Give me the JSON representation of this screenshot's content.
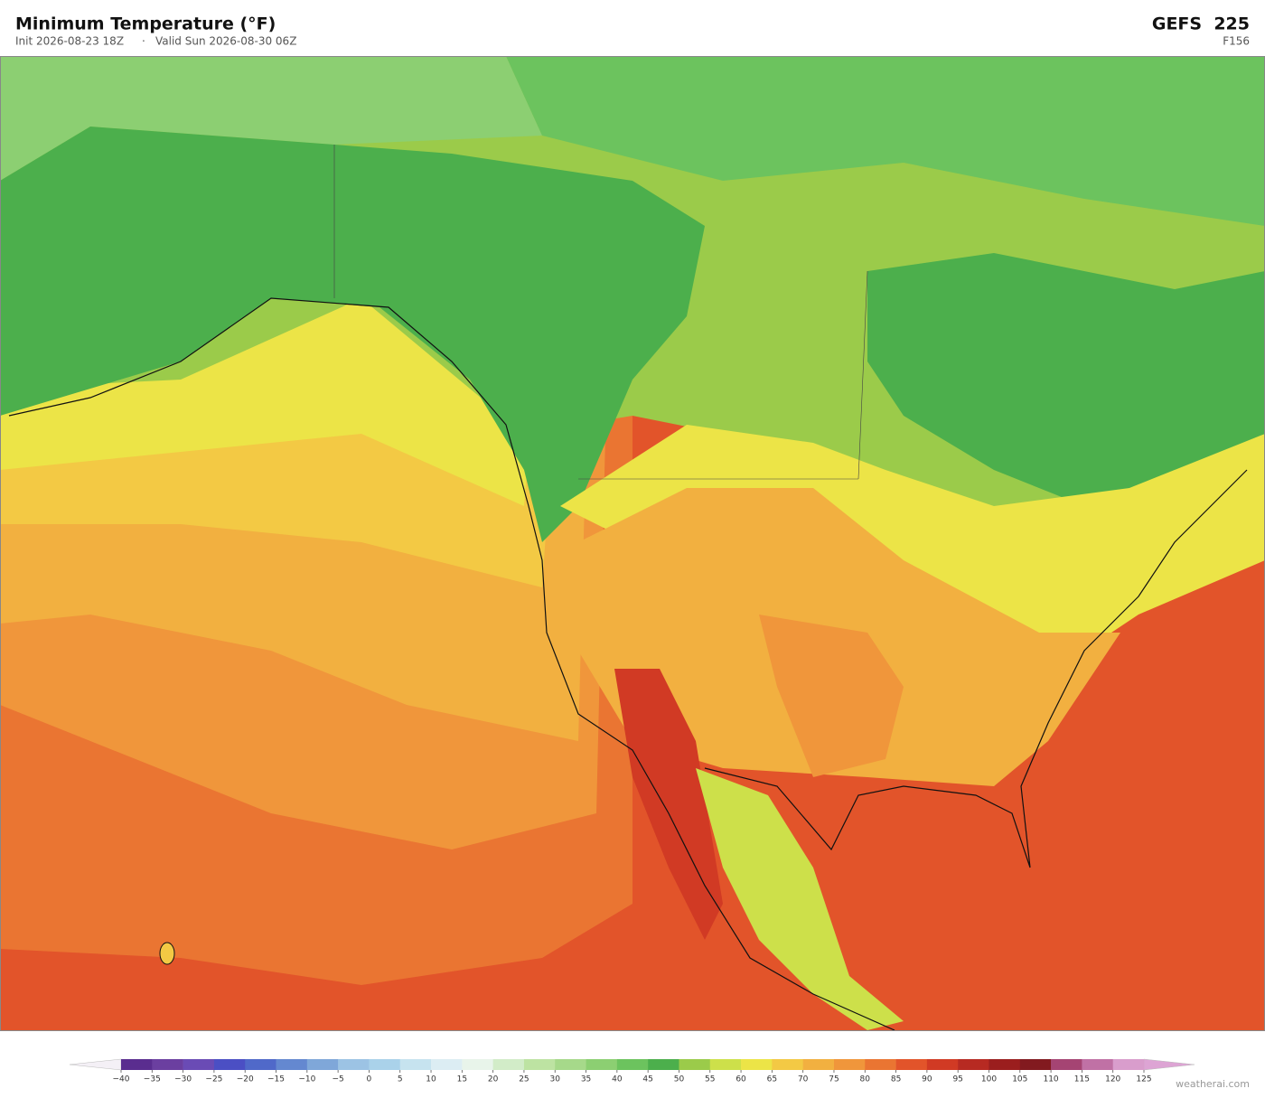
{
  "header": {
    "title": "Minimum Temperature  (°F)",
    "init": "Init 2026-08-23 18Z",
    "separator": "·",
    "valid": "Valid Sun 2026-08-30 06Z",
    "model": "GEFS  225",
    "forecast_hour": "F156"
  },
  "colorbar": {
    "ticks": [
      {
        "value": -40,
        "label": "−40"
      },
      {
        "value": -35,
        "label": "−35"
      },
      {
        "value": -30,
        "label": "−30"
      },
      {
        "value": -25,
        "label": "−25"
      },
      {
        "value": -20,
        "label": "−20"
      },
      {
        "value": -15,
        "label": "−15"
      },
      {
        "value": -10,
        "label": "−10"
      },
      {
        "value": -5,
        "label": "−5"
      },
      0,
      5,
      10,
      15,
      20,
      25,
      30,
      35,
      40,
      45,
      50,
      55,
      60,
      65,
      70,
      75,
      80,
      85,
      90,
      95,
      100,
      105,
      110,
      115,
      120,
      125
    ],
    "colors": [
      "#5a2d8f",
      "#6b3fa0",
      "#6a4bb5",
      "#4b4fc4",
      "#5069c9",
      "#6488d0",
      "#7fa7d9",
      "#9cc3e4",
      "#aad2ea",
      "#c6e3ef",
      "#dcedf3",
      "#e8f4ea",
      "#d2ecc8",
      "#bde3a2",
      "#a6d98a",
      "#8ccf72",
      "#6cc35e",
      "#4caf4c",
      "#9bcb4a",
      "#cde04a",
      "#ece447",
      "#f3c944",
      "#f2b040",
      "#f0963b",
      "#ea7532",
      "#e2542a",
      "#d13a24",
      "#b72a22",
      "#9b1e1e",
      "#821a1f",
      "#a54473",
      "#c071a5",
      "#d99dcc"
    ],
    "under_color": "#f4f0f6",
    "over_color": "#dda4d4"
  },
  "watermark": "weatherai.com"
}
